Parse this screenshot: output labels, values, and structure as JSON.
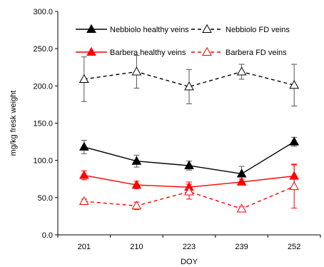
{
  "chart_data": {
    "type": "line",
    "xlabel": "DOY",
    "ylabel": "mg/kg fresk weight",
    "ylim": [
      0,
      300
    ],
    "yticks": [
      "0.0",
      "50.0",
      "100.0",
      "150.0",
      "200.0",
      "250.0",
      "300.0"
    ],
    "grid": false,
    "legend_position": "top",
    "categories": [
      "201",
      "210",
      "223",
      "239",
      "252"
    ],
    "series": [
      {
        "name": "Nebbiolo healthy veins",
        "values": [
          118,
          99,
          93,
          82,
          125
        ],
        "errors": [
          9,
          8,
          6,
          10,
          6
        ],
        "color": "#000000",
        "line_style": "solid",
        "marker": "filled-triangle"
      },
      {
        "name": "Nebbiolo FD veins",
        "values": [
          209,
          219,
          199,
          219,
          201
        ],
        "errors": [
          30,
          22,
          23,
          10,
          28
        ],
        "color": "#000000",
        "line_style": "dashed",
        "marker": "open-triangle"
      },
      {
        "name": "Barbera healthy veins",
        "values": [
          80,
          67,
          64,
          71,
          79
        ],
        "errors": [
          6,
          5,
          7,
          4,
          16
        ],
        "color": "#ff0000",
        "line_style": "solid",
        "marker": "filled-triangle"
      },
      {
        "name": "Barbera FD veins",
        "values": [
          45,
          39,
          58,
          35,
          65
        ],
        "errors": [
          3,
          5,
          10,
          3,
          29
        ],
        "color": "#ff0000",
        "line_style": "dashed",
        "marker": "open-triangle"
      }
    ]
  }
}
